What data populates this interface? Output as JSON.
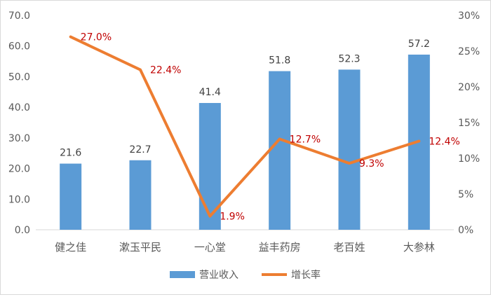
{
  "chart_data": {
    "type": "bar+line",
    "categories": [
      "健之佳",
      "漱玉平民",
      "一心堂",
      "益丰药房",
      "老百姓",
      "大参林"
    ],
    "series": [
      {
        "name": "营业收入",
        "type": "bar",
        "axis": "left",
        "values": [
          21.6,
          22.7,
          41.4,
          51.8,
          52.3,
          57.2
        ],
        "labels": [
          "21.6",
          "22.7",
          "41.4",
          "51.8",
          "52.3",
          "57.2"
        ],
        "color": "#5B9BD5"
      },
      {
        "name": "增长率",
        "type": "line",
        "axis": "right",
        "values": [
          27.0,
          22.4,
          1.9,
          12.7,
          9.3,
          12.4
        ],
        "labels": [
          "27.0%",
          "22.4%",
          "1.9%",
          "12.7%",
          "9.3%",
          "12.4%"
        ],
        "color": "#ED7D31"
      }
    ],
    "ylim_left": [
      0,
      70
    ],
    "yticks_left": [
      "0.0",
      "10.0",
      "20.0",
      "30.0",
      "40.0",
      "50.0",
      "60.0",
      "70.0"
    ],
    "ylim_right": [
      0,
      30
    ],
    "yticks_right": [
      "0%",
      "5%",
      "10%",
      "15%",
      "20%",
      "25%",
      "30%"
    ],
    "line_label_color": "#C00000",
    "legend_position": "bottom",
    "grid": false
  }
}
